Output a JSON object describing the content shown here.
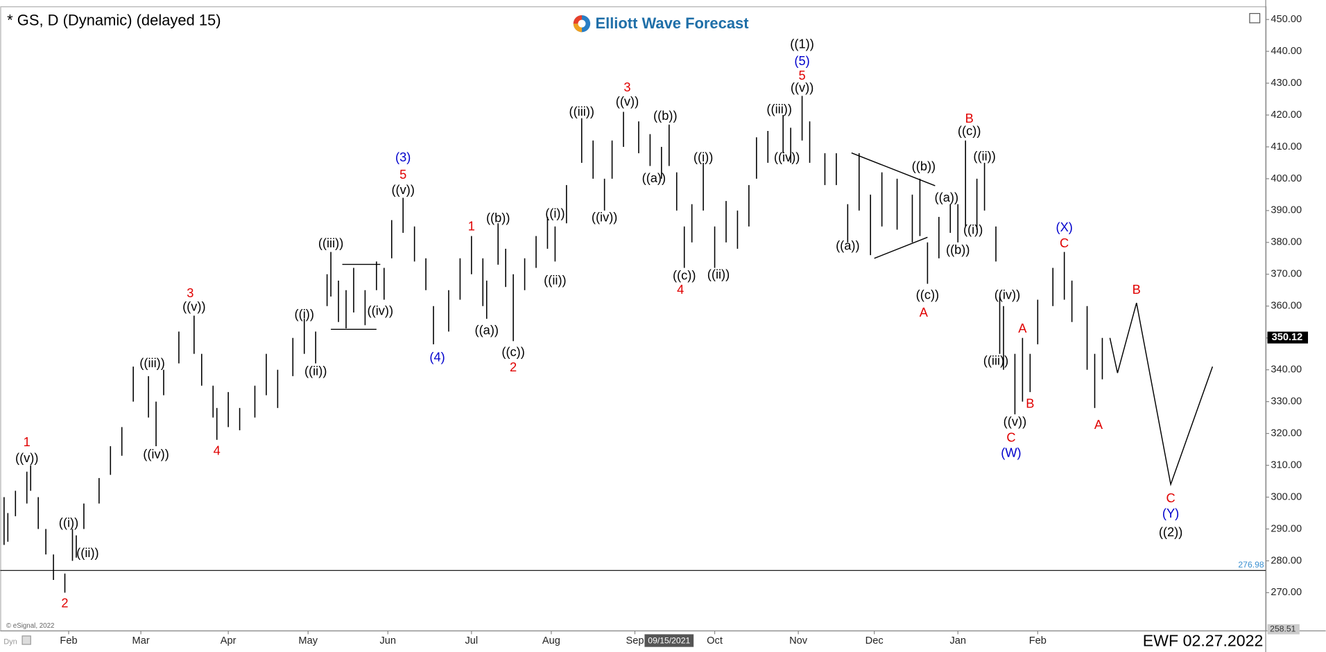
{
  "chart_data": {
    "type": "ohlc",
    "title": "* GS, D (Dynamic) (delayed 15)",
    "logo": "Elliott Wave Forecast",
    "footer": "EWF 02.27.2022",
    "copyright": "© eSignal, 2022",
    "mode": "Dyn",
    "color": "#000000",
    "xlim": [
      0,
      333
    ],
    "ylim": [
      258,
      454
    ],
    "yticks": [
      {
        "value": 270,
        "label": "270.00"
      },
      {
        "value": 280,
        "label": "280.00"
      },
      {
        "value": 290,
        "label": "290.00"
      },
      {
        "value": 300,
        "label": "300.00"
      },
      {
        "value": 310,
        "label": "310.00"
      },
      {
        "value": 320,
        "label": "320.00"
      },
      {
        "value": 330,
        "label": "330.00"
      },
      {
        "value": 340,
        "label": "340.00"
      },
      {
        "value": 350,
        "label": "350.00"
      },
      {
        "value": 360,
        "label": "360.00"
      },
      {
        "value": 370,
        "label": "370.00"
      },
      {
        "value": 380,
        "label": "380.00"
      },
      {
        "value": 390,
        "label": "390.00"
      },
      {
        "value": 400,
        "label": "400.00"
      },
      {
        "value": 410,
        "label": "410.00"
      },
      {
        "value": 420,
        "label": "420.00"
      },
      {
        "value": 430,
        "label": "430.00"
      },
      {
        "value": 440,
        "label": "440.00"
      },
      {
        "value": 450,
        "label": "450.00"
      }
    ],
    "xticks": [
      {
        "value": 18,
        "label": "Feb"
      },
      {
        "value": 37,
        "label": "Mar"
      },
      {
        "value": 60,
        "label": "Apr"
      },
      {
        "value": 81,
        "label": "May"
      },
      {
        "value": 102,
        "label": "Jun"
      },
      {
        "value": 124,
        "label": "Jul"
      },
      {
        "value": 145,
        "label": "Aug"
      },
      {
        "value": 167,
        "label": "Sep"
      },
      {
        "value": 188,
        "label": "Oct"
      },
      {
        "value": 210,
        "label": "Nov"
      },
      {
        "value": 230,
        "label": "Dec"
      },
      {
        "value": 252,
        "label": "Jan"
      },
      {
        "value": 273,
        "label": "Feb"
      }
    ],
    "cursor": {
      "value": 176,
      "label": "09/15/2021"
    },
    "last_price": {
      "value": 350.12,
      "label": "350.12"
    },
    "hline": {
      "value": 276.98,
      "label": "276.98",
      "color": "#3a8fd0"
    },
    "axis_min": {
      "value": 258.51,
      "label": "258.51"
    },
    "bars": {
      "x": [
        1,
        2,
        4,
        7,
        8,
        10,
        12,
        14,
        17,
        19,
        20,
        22,
        26,
        29,
        32,
        35,
        39,
        41,
        43,
        47,
        51,
        53,
        56,
        57,
        60,
        63,
        67,
        70,
        73,
        77,
        80,
        83,
        86,
        87,
        89,
        91,
        93,
        96,
        99,
        101,
        103,
        106,
        109,
        112,
        114,
        118,
        121,
        124,
        127,
        128,
        131,
        133,
        135,
        138,
        141,
        144,
        146,
        149,
        153,
        156,
        159,
        161,
        164,
        168,
        171,
        174,
        176,
        178,
        180,
        182,
        185,
        188,
        191,
        194,
        197,
        199,
        202,
        206,
        208,
        211,
        213,
        217,
        220,
        223,
        226,
        229,
        232,
        236,
        240,
        242,
        244,
        247,
        250,
        252,
        254,
        257,
        259,
        262,
        263,
        264,
        267,
        269,
        271,
        273,
        277,
        280,
        282,
        286,
        288,
        290
      ],
      "high": [
        300,
        295,
        302,
        308,
        310,
        300,
        290,
        282,
        276,
        290,
        288,
        298,
        306,
        316,
        322,
        341,
        338,
        330,
        340,
        352,
        357,
        345,
        335,
        328,
        333,
        328,
        335,
        345,
        340,
        350,
        356,
        352,
        370,
        377,
        368,
        365,
        372,
        365,
        374,
        372,
        387,
        394,
        385,
        375,
        360,
        365,
        375,
        382,
        375,
        368,
        386,
        378,
        370,
        375,
        382,
        388,
        385,
        398,
        419,
        412,
        400,
        412,
        421,
        418,
        414,
        410,
        417,
        402,
        385,
        392,
        405,
        385,
        393,
        390,
        398,
        413,
        415,
        420,
        416,
        426,
        418,
        408,
        408,
        392,
        408,
        395,
        402,
        400,
        395,
        400,
        380,
        388,
        392,
        392,
        412,
        400,
        405,
        385,
        363,
        360,
        345,
        350,
        345,
        362,
        372,
        377,
        368,
        360,
        345,
        350
      ],
      "low": [
        285,
        286,
        294,
        298,
        302,
        290,
        282,
        274,
        270,
        280,
        281,
        290,
        298,
        307,
        313,
        330,
        325,
        316,
        332,
        342,
        345,
        335,
        325,
        318,
        322,
        321,
        325,
        332,
        328,
        338,
        345,
        342,
        360,
        363,
        355,
        353,
        358,
        354,
        365,
        362,
        375,
        383,
        374,
        365,
        348,
        352,
        362,
        370,
        360,
        356,
        373,
        366,
        349,
        365,
        372,
        378,
        374,
        386,
        405,
        400,
        390,
        400,
        410,
        408,
        404,
        400,
        404,
        390,
        372,
        380,
        390,
        372,
        380,
        378,
        385,
        400,
        405,
        408,
        405,
        412,
        405,
        398,
        398,
        380,
        390,
        376,
        385,
        384,
        380,
        382,
        367,
        375,
        383,
        380,
        385,
        384,
        390,
        374,
        345,
        340,
        326,
        330,
        333,
        348,
        360,
        362,
        355,
        340,
        328,
        337
      ]
    },
    "projection": {
      "x": [
        292,
        294,
        299,
        308,
        319
      ],
      "values": [
        350,
        339,
        361,
        304,
        341
      ]
    },
    "trendlines": [
      {
        "x": [
          90,
          100
        ],
        "values": [
          373.1,
          373.1
        ]
      },
      {
        "x": [
          87,
          99
        ],
        "values": [
          352.7,
          352.7
        ]
      },
      {
        "x": [
          224,
          246
        ],
        "values": [
          408.1,
          397.8
        ]
      },
      {
        "x": [
          230,
          244
        ],
        "values": [
          375.0,
          381.6
        ]
      }
    ],
    "annotations": [
      {
        "text": "1",
        "x": 7,
        "y": 317,
        "color": "#e00000"
      },
      {
        "text": "((v))",
        "x": 7,
        "y": 312,
        "color": "#000000"
      },
      {
        "text": "((i))",
        "x": 18,
        "y": 291.7,
        "color": "#000000"
      },
      {
        "text": "((ii))",
        "x": 23,
        "y": 282.2,
        "color": "#000000"
      },
      {
        "text": "2",
        "x": 17,
        "y": 266.5,
        "color": "#e00000"
      },
      {
        "text": "((iii))",
        "x": 40,
        "y": 341.8,
        "color": "#000000"
      },
      {
        "text": "((iv))",
        "x": 41,
        "y": 313.2,
        "color": "#000000"
      },
      {
        "text": "3",
        "x": 50,
        "y": 363.8,
        "color": "#e00000"
      },
      {
        "text": "((v))",
        "x": 51,
        "y": 359.6,
        "color": "#000000"
      },
      {
        "text": "4",
        "x": 57,
        "y": 314.3,
        "color": "#e00000"
      },
      {
        "text": "((iii))",
        "x": 87,
        "y": 379.5,
        "color": "#000000"
      },
      {
        "text": "((i))",
        "x": 80,
        "y": 357.2,
        "color": "#000000"
      },
      {
        "text": "((ii))",
        "x": 83,
        "y": 339.4,
        "color": "#000000"
      },
      {
        "text": "((iv))",
        "x": 100,
        "y": 358.3,
        "color": "#000000"
      },
      {
        "text": "(3)",
        "x": 106,
        "y": 406.5,
        "color": "#0000cc"
      },
      {
        "text": "5",
        "x": 106,
        "y": 401,
        "color": "#e00000"
      },
      {
        "text": "((v))",
        "x": 106,
        "y": 396.2,
        "color": "#000000"
      },
      {
        "text": "(4)",
        "x": 115,
        "y": 343.7,
        "color": "#0000cc"
      },
      {
        "text": "1",
        "x": 124,
        "y": 384.8,
        "color": "#e00000"
      },
      {
        "text": "((b))",
        "x": 131,
        "y": 387.4,
        "color": "#000000"
      },
      {
        "text": "((a))",
        "x": 128,
        "y": 352.2,
        "color": "#000000"
      },
      {
        "text": "((c))",
        "x": 135,
        "y": 345.3,
        "color": "#000000"
      },
      {
        "text": "2",
        "x": 135,
        "y": 340.5,
        "color": "#e00000"
      },
      {
        "text": "((i))",
        "x": 146,
        "y": 388.8,
        "color": "#000000"
      },
      {
        "text": "((ii))",
        "x": 146,
        "y": 367.8,
        "color": "#000000"
      },
      {
        "text": "((iii))",
        "x": 153,
        "y": 420.8,
        "color": "#000000"
      },
      {
        "text": "((iv))",
        "x": 159,
        "y": 387.7,
        "color": "#000000"
      },
      {
        "text": "3",
        "x": 165,
        "y": 428.5,
        "color": "#e00000"
      },
      {
        "text": "((v))",
        "x": 165,
        "y": 424,
        "color": "#000000"
      },
      {
        "text": "((b))",
        "x": 175,
        "y": 419.5,
        "color": "#000000"
      },
      {
        "text": "((a))",
        "x": 172,
        "y": 399.9,
        "color": "#000000"
      },
      {
        "text": "((c))",
        "x": 180,
        "y": 369.4,
        "color": "#000000"
      },
      {
        "text": "4",
        "x": 179,
        "y": 364.9,
        "color": "#e00000"
      },
      {
        "text": "((i))",
        "x": 185,
        "y": 406.5,
        "color": "#000000"
      },
      {
        "text": "((ii))",
        "x": 189,
        "y": 369.7,
        "color": "#000000"
      },
      {
        "text": "((iii))",
        "x": 205,
        "y": 421.6,
        "color": "#000000"
      },
      {
        "text": "((iv))",
        "x": 207,
        "y": 406.5,
        "color": "#000000"
      },
      {
        "text": "((1))",
        "x": 211,
        "y": 442,
        "color": "#000000"
      },
      {
        "text": "(5)",
        "x": 211,
        "y": 436.7,
        "color": "#0000cc"
      },
      {
        "text": "5",
        "x": 211,
        "y": 432.2,
        "color": "#e00000"
      },
      {
        "text": "((v))",
        "x": 211,
        "y": 428.3,
        "color": "#000000"
      },
      {
        "text": "((a))",
        "x": 223,
        "y": 378.7,
        "color": "#000000"
      },
      {
        "text": "((b))",
        "x": 243,
        "y": 403.6,
        "color": "#000000"
      },
      {
        "text": "((c))",
        "x": 244,
        "y": 363.3,
        "color": "#000000"
      },
      {
        "text": "A",
        "x": 243,
        "y": 357.7,
        "color": "#e00000"
      },
      {
        "text": "((a))",
        "x": 249,
        "y": 393.8,
        "color": "#000000"
      },
      {
        "text": "((b))",
        "x": 252,
        "y": 377.4,
        "color": "#000000"
      },
      {
        "text": "B",
        "x": 255,
        "y": 418.7,
        "color": "#e00000"
      },
      {
        "text": "((c))",
        "x": 255,
        "y": 414.7,
        "color": "#000000"
      },
      {
        "text": "((ii))",
        "x": 259,
        "y": 406.8,
        "color": "#000000"
      },
      {
        "text": "((i))",
        "x": 256,
        "y": 383.7,
        "color": "#000000"
      },
      {
        "text": "((iv))",
        "x": 265,
        "y": 363.3,
        "color": "#000000"
      },
      {
        "text": "((iii))",
        "x": 262,
        "y": 342.6,
        "color": "#000000"
      },
      {
        "text": "((v))",
        "x": 267,
        "y": 323.5,
        "color": "#000000"
      },
      {
        "text": "C",
        "x": 266,
        "y": 318.5,
        "color": "#e00000"
      },
      {
        "text": "(W)",
        "x": 266,
        "y": 313.7,
        "color": "#0000cc"
      },
      {
        "text": "A",
        "x": 269,
        "y": 352.7,
        "color": "#e00000"
      },
      {
        "text": "B",
        "x": 271,
        "y": 329.1,
        "color": "#e00000"
      },
      {
        "text": "(X)",
        "x": 280,
        "y": 384.5,
        "color": "#0000cc"
      },
      {
        "text": "C",
        "x": 280,
        "y": 379.5,
        "color": "#e00000"
      },
      {
        "text": "A",
        "x": 289,
        "y": 322.5,
        "color": "#e00000"
      },
      {
        "text": "B",
        "x": 299,
        "y": 364.9,
        "color": "#e00000"
      },
      {
        "text": "C",
        "x": 308,
        "y": 299.4,
        "color": "#e00000"
      },
      {
        "text": "(Y)",
        "x": 308,
        "y": 294.6,
        "color": "#0000cc"
      },
      {
        "text": "((2))",
        "x": 308,
        "y": 288.8,
        "color": "#000000"
      }
    ]
  }
}
